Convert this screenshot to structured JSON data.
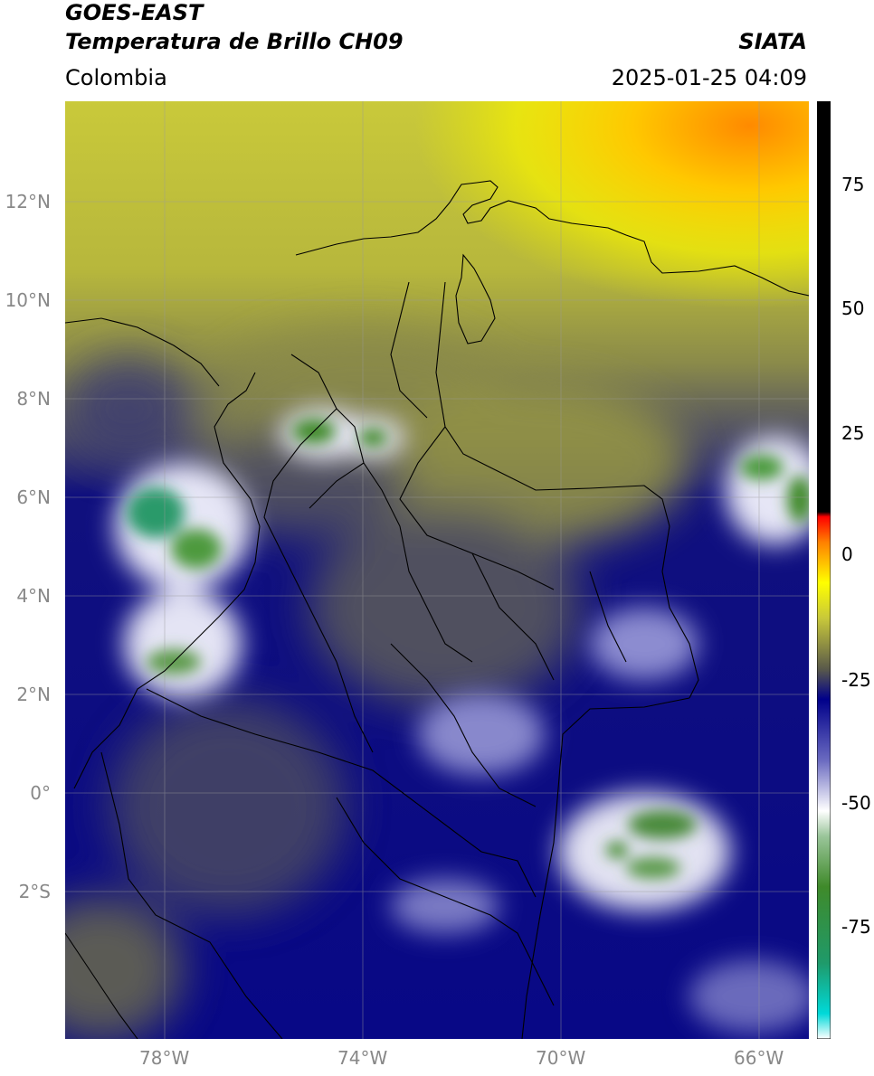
{
  "header": {
    "satellite": "GOES-EAST",
    "product": "Temperatura de Brillo CH09",
    "region": "Colombia",
    "organization": "SIATA",
    "datetime": "2025-01-25 04:09"
  },
  "map": {
    "lat_ticks": [
      "12°N",
      "10°N",
      "8°N",
      "6°N",
      "4°N",
      "2°N",
      "0°",
      "2°S"
    ],
    "lon_ticks": [
      "78°W",
      "74°W",
      "70°W",
      "66°W"
    ],
    "extent": {
      "lon_min": -80.0,
      "lon_max": -65.0,
      "lat_min": -4.3,
      "lat_max": 14.0
    }
  },
  "colorbar": {
    "ticks": [
      "75",
      "50",
      "25",
      "0",
      "-25",
      "-50",
      "-75"
    ],
    "range": [
      -95,
      90
    ],
    "stops": [
      {
        "value": -95,
        "color": "#ffffff"
      },
      {
        "value": -90,
        "color": "#00d9d9"
      },
      {
        "value": -80,
        "color": "#1f9a6a"
      },
      {
        "value": -65,
        "color": "#3f8a2a"
      },
      {
        "value": -55,
        "color": "#9ac59a"
      },
      {
        "value": -50,
        "color": "#ffffff"
      },
      {
        "value": -40,
        "color": "#6a6ac0"
      },
      {
        "value": -28,
        "color": "#00008a"
      },
      {
        "value": -22,
        "color": "#5a5a4a"
      },
      {
        "value": -12,
        "color": "#c8c83a"
      },
      {
        "value": -5,
        "color": "#ffff00"
      },
      {
        "value": 3,
        "color": "#ff8000"
      },
      {
        "value": 8,
        "color": "#ff0000"
      },
      {
        "value": 9,
        "color": "#000000"
      },
      {
        "value": 90,
        "color": "#000000"
      }
    ]
  },
  "colors": {
    "deep_convection": "#00008a",
    "cold_cloud_top": "#ffffff",
    "very_cold_core": "#3f8a2a",
    "warm_surface": "#c8c83a",
    "hot_surface": "#ffa000"
  }
}
